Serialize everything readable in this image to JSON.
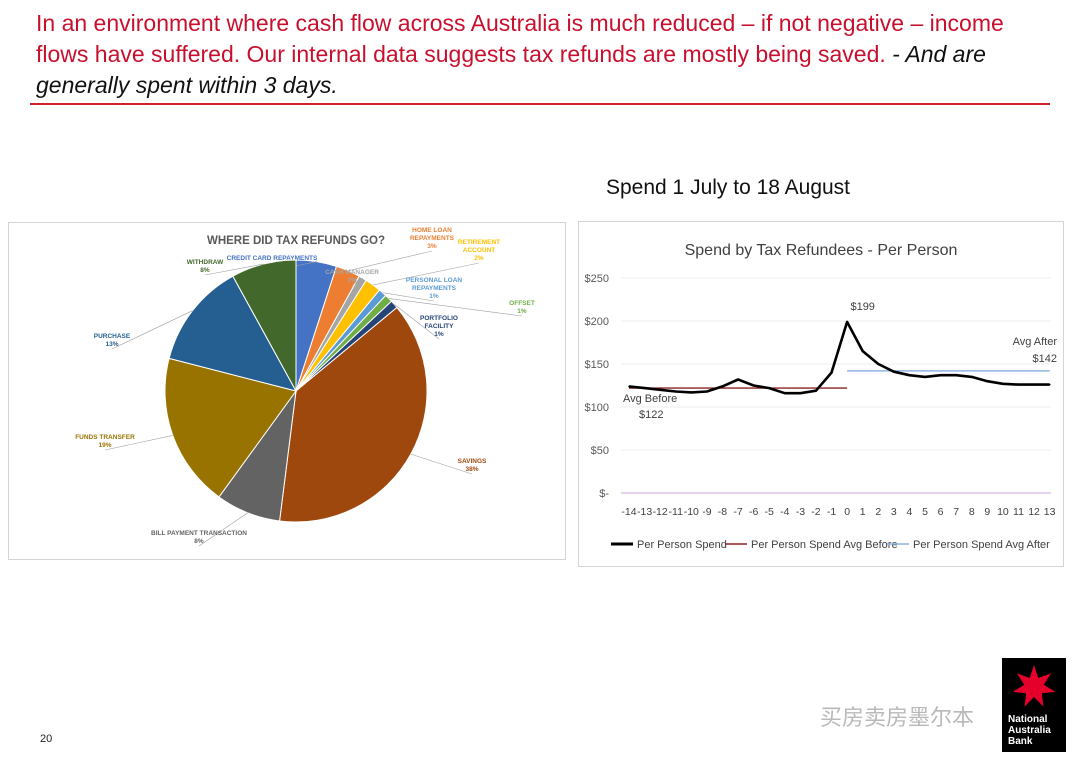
{
  "headline": {
    "main": "In an environment where cash flow across Australia is much reduced – if not negative – income flows have suffered.  Our internal data suggests tax refunds are mostly being saved.",
    "sub": "- And are generally spent within 3 days."
  },
  "chart_caption": "Spend 1 July to 18 August",
  "page_number": "20",
  "watermark": "买房卖房墨尔本",
  "logo": {
    "lines": [
      "National",
      "Australia",
      "Bank"
    ]
  },
  "colors": {
    "headline": "#c8102e",
    "rule": "#d0202a",
    "logo_star": "#e4002b"
  },
  "chart_data": [
    {
      "type": "pie",
      "title": "WHERE DID TAX REFUNDS GO?",
      "slices": [
        {
          "label": "CREDIT CARD REPAYMENTS",
          "value": 5,
          "value_label": "5%",
          "color": "#4472c4"
        },
        {
          "label": "HOME LOAN REPAYMENTS",
          "value": 3,
          "value_label": "3%",
          "color": "#ed7d31"
        },
        {
          "label": "CASH MANAGER",
          "value": 1,
          "value_label": "1%",
          "color": "#a5a5a5"
        },
        {
          "label": "RETIREMENT ACCOUNT",
          "value": 2,
          "value_label": "2%",
          "color": "#ffc000"
        },
        {
          "label": "PERSONAL LOAN REPAYMENTS",
          "value": 1,
          "value_label": "1%",
          "color": "#5b9bd5"
        },
        {
          "label": "OFFSET",
          "value": 1,
          "value_label": "1%",
          "color": "#70ad47"
        },
        {
          "label": "PORTFOLIO FACILITY",
          "value": 1,
          "value_label": "1%",
          "color": "#264478"
        },
        {
          "label": "SAVINGS",
          "value": 38,
          "value_label": "38%",
          "color": "#9e480e"
        },
        {
          "label": "BILL PAYMENT TRANSACTION",
          "value": 8,
          "value_label": "8%",
          "color": "#636363"
        },
        {
          "label": "FUNDS TRANSFER",
          "value": 19,
          "value_label": "19%",
          "color": "#997300"
        },
        {
          "label": "PURCHASE",
          "value": 13,
          "value_label": "13%",
          "color": "#255e91"
        },
        {
          "label": "WITHDRAW",
          "value": 8,
          "value_label": "8%",
          "color": "#43682b"
        }
      ]
    },
    {
      "type": "line",
      "title": "Spend by Tax Refundees - Per Person",
      "x": [
        -14,
        -13,
        -12,
        -11,
        -10,
        -9,
        -8,
        -7,
        -6,
        -5,
        -4,
        -3,
        -2,
        -1,
        0,
        1,
        2,
        3,
        4,
        5,
        6,
        7,
        8,
        9,
        10,
        11,
        12,
        13
      ],
      "x_tick_labels": [
        "-14",
        "-13",
        "-12",
        "-11",
        "-10",
        "-9",
        "-8",
        "-7",
        "-6",
        "-5",
        "-4",
        "-3",
        "-2",
        "-1",
        "0",
        "1",
        "2",
        "3",
        "4",
        "5",
        "6",
        "7",
        "8",
        "9",
        "10",
        "11",
        "12",
        "13"
      ],
      "ylim": [
        0,
        250
      ],
      "y_ticks": [
        0,
        50,
        100,
        150,
        200,
        250
      ],
      "y_tick_labels": [
        "$-",
        "$50",
        "$100",
        "$150",
        "$200",
        "$250"
      ],
      "series": [
        {
          "name": "Per Person Spend",
          "color": "#000000",
          "values": [
            124,
            122,
            120,
            118,
            117,
            118,
            124,
            132,
            125,
            122,
            116,
            116,
            119,
            140,
            199,
            165,
            150,
            141,
            137,
            135,
            137,
            137,
            135,
            130,
            127,
            126,
            126,
            126
          ]
        },
        {
          "name": "Per Person Spend Avg Before",
          "color": "#8b2323",
          "x_range": [
            -14,
            0
          ],
          "value": 122
        },
        {
          "name": "Per Person Spend Avg After",
          "color": "#8eb4e3",
          "x_range": [
            0,
            13
          ],
          "value": 142
        }
      ],
      "annotations": [
        {
          "text": "$199",
          "x": 1,
          "y": 199
        },
        {
          "text": "Avg Before",
          "x": -14,
          "y": 122
        },
        {
          "text": "$122",
          "x": -14,
          "y": 122
        },
        {
          "text": "Avg After",
          "x": 13,
          "y": 142
        },
        {
          "text": "$142",
          "x": 13,
          "y": 142
        }
      ],
      "legend_position": "bottom"
    }
  ]
}
